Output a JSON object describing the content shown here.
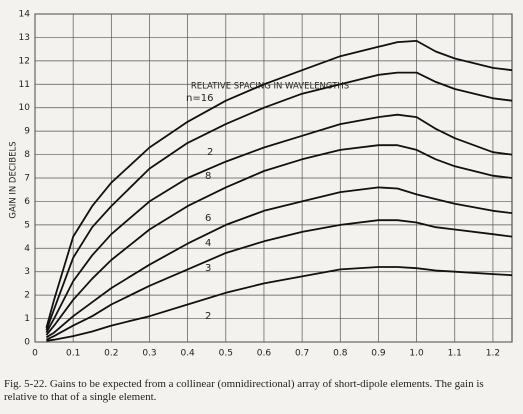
{
  "chart_data": {
    "type": "line",
    "x_label": "RELATIVE SPACING IN WAVELENGTHS",
    "y_label": "GAIN IN DECIBELS",
    "caption": "Fig. 5-22. Gains to be expected from a collinear (omnidirectional) array of short-dipole elements. The gain is relative to that of a single element.",
    "x": [
      0.03,
      0.05,
      0.1,
      0.15,
      0.2,
      0.3,
      0.4,
      0.5,
      0.6,
      0.7,
      0.8,
      0.9,
      0.95,
      1.0,
      1.05,
      1.1,
      1.2,
      1.25
    ],
    "series": [
      {
        "name": "n=16",
        "color": "#111111",
        "values": [
          0.6,
          1.8,
          4.5,
          5.8,
          6.8,
          8.3,
          9.4,
          10.3,
          11,
          11.6,
          12.2,
          12.6,
          12.8,
          12.85,
          12.4,
          12.1,
          11.7,
          11.6
        ]
      },
      {
        "name": "2",
        "color": "#111111",
        "values": [
          0.5,
          1.4,
          3.6,
          4.9,
          5.8,
          7.4,
          8.5,
          9.3,
          10,
          10.6,
          11,
          11.4,
          11.5,
          11.5,
          11.1,
          10.8,
          10.4,
          10.3
        ]
      },
      {
        "name": "8",
        "color": "#111111",
        "values": [
          0.4,
          1.0,
          2.6,
          3.7,
          4.6,
          6,
          7,
          7.7,
          8.3,
          8.8,
          9.3,
          9.6,
          9.7,
          9.6,
          9.1,
          8.7,
          8.1,
          8.0
        ]
      },
      {
        "name": "6",
        "color": "#111111",
        "values": [
          0.3,
          0.7,
          1.8,
          2.7,
          3.5,
          4.8,
          5.8,
          6.6,
          7.3,
          7.8,
          8.2,
          8.4,
          8.4,
          8.2,
          7.8,
          7.5,
          7.1,
          7.0
        ]
      },
      {
        "name": "4",
        "color": "#111111",
        "values": [
          0.2,
          0.4,
          1.1,
          1.7,
          2.3,
          3.3,
          4.2,
          5,
          5.6,
          6.0,
          6.4,
          6.6,
          6.55,
          6.3,
          6.1,
          5.9,
          5.6,
          5.5
        ]
      },
      {
        "name": "3",
        "color": "#111111",
        "values": [
          0.1,
          0.25,
          0.7,
          1.1,
          1.6,
          2.4,
          3.1,
          3.8,
          4.3,
          4.7,
          5,
          5.2,
          5.2,
          5.1,
          4.9,
          4.8,
          4.6,
          4.5
        ]
      },
      {
        "name": "2",
        "color": "#111111",
        "values": [
          0.05,
          0.1,
          0.25,
          0.45,
          0.7,
          1.1,
          1.6,
          2.1,
          2.5,
          2.8,
          3.1,
          3.2,
          3.2,
          3.15,
          3.05,
          3.0,
          2.9,
          2.85
        ]
      }
    ],
    "xlim": [
      0,
      1.25
    ],
    "ylim": [
      0,
      14
    ],
    "xticks": [
      0,
      0.1,
      0.2,
      0.3,
      0.4,
      0.5,
      0.6,
      0.7,
      0.8,
      0.9,
      {
        "value": 1,
        "label": "1.0"
      },
      1.1,
      1.2
    ],
    "yticks": [
      0,
      1,
      2,
      3,
      4,
      5,
      6,
      7,
      8,
      9,
      10,
      11,
      12,
      13,
      14
    ],
    "grid": true
  }
}
